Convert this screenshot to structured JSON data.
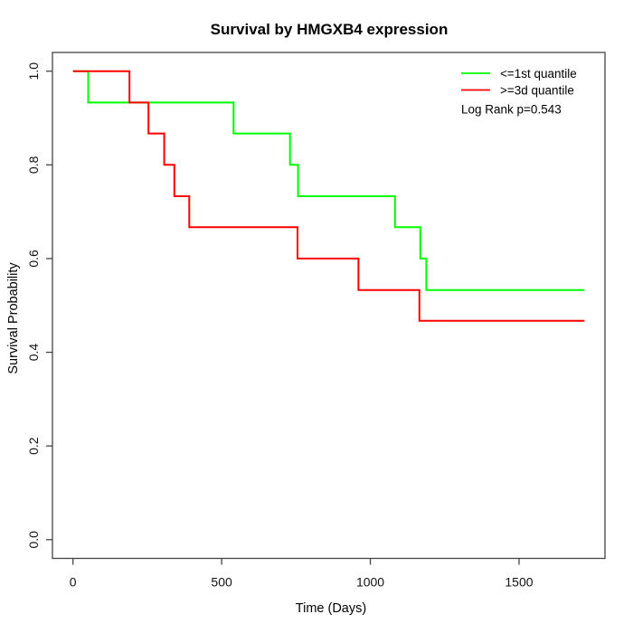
{
  "chart_data": {
    "type": "line",
    "subtype": "step-survival",
    "title": "Survival by HMGXB4 expression",
    "xlabel": "Time (Days)",
    "ylabel": "Survival Probability",
    "xlim": [
      -69,
      1789
    ],
    "ylim": [
      -0.04,
      1.04
    ],
    "grid": false,
    "legend_position": "top-right-inside",
    "x_ticks": [
      {
        "v": 0,
        "label": "0"
      },
      {
        "v": 500,
        "label": "500"
      },
      {
        "v": 1000,
        "label": "1000"
      },
      {
        "v": 1500,
        "label": "1500"
      }
    ],
    "y_ticks": [
      {
        "v": 0.0,
        "label": "0.0"
      },
      {
        "v": 0.2,
        "label": "0.2"
      },
      {
        "v": 0.4,
        "label": "0.4"
      },
      {
        "v": 0.6,
        "label": "0.6"
      },
      {
        "v": 0.8,
        "label": "0.8"
      },
      {
        "v": 1.0,
        "label": "1.0"
      }
    ],
    "series": [
      {
        "name": "<=1st quantile",
        "color": "#00FF00",
        "points": [
          [
            0,
            1.0
          ],
          [
            51,
            1.0
          ],
          [
            51,
            0.933
          ],
          [
            540,
            0.933
          ],
          [
            540,
            0.867
          ],
          [
            730,
            0.867
          ],
          [
            730,
            0.8
          ],
          [
            757,
            0.8
          ],
          [
            757,
            0.733
          ],
          [
            1083,
            0.733
          ],
          [
            1083,
            0.667
          ],
          [
            1168,
            0.667
          ],
          [
            1168,
            0.6
          ],
          [
            1188,
            0.6
          ],
          [
            1188,
            0.533
          ],
          [
            1720,
            0.533
          ]
        ]
      },
      {
        "name": ">=3d quantile",
        "color": "#FF0000",
        "points": [
          [
            0,
            1.0
          ],
          [
            190,
            1.0
          ],
          [
            190,
            0.933
          ],
          [
            254,
            0.933
          ],
          [
            254,
            0.867
          ],
          [
            307,
            0.867
          ],
          [
            307,
            0.8
          ],
          [
            341,
            0.8
          ],
          [
            341,
            0.733
          ],
          [
            391,
            0.733
          ],
          [
            391,
            0.667
          ],
          [
            755,
            0.667
          ],
          [
            755,
            0.6
          ],
          [
            960,
            0.6
          ],
          [
            960,
            0.533
          ],
          [
            1165,
            0.533
          ],
          [
            1165,
            0.467
          ],
          [
            1720,
            0.467
          ]
        ]
      }
    ],
    "annotation": "Log Rank p=0.543"
  }
}
